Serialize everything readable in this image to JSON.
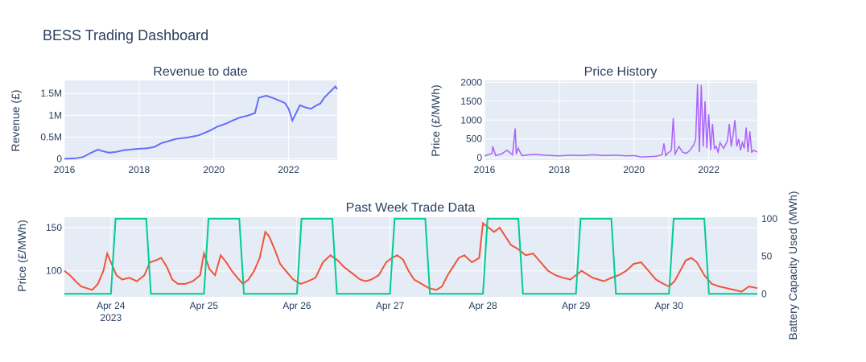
{
  "dashboard": {
    "title": "BESS Trading Dashboard"
  },
  "colors": {
    "plot_bg": "#e5ecf6",
    "grid": "#ffffff",
    "text": "#2a3f5f",
    "revenue_line": "#636efa",
    "price_history_line": "#ab63fa",
    "trade_price_line": "#ef553b",
    "battery_line": "#00cc96"
  },
  "chart_data": [
    {
      "id": "revenue",
      "type": "line",
      "title": "Revenue to date",
      "xlabel": "",
      "ylabel": "Revenue (£)",
      "xlim": [
        2016.0,
        2023.3
      ],
      "ylim": [
        -30000,
        1800000
      ],
      "x_ticks": [
        2016,
        2018,
        2020,
        2022
      ],
      "x_tick_labels": [
        "2016",
        "2018",
        "2020",
        "2022"
      ],
      "y_ticks": [
        0,
        500000,
        1000000,
        1500000
      ],
      "y_tick_labels": [
        "0",
        "0.5M",
        "1M",
        "1.5M"
      ],
      "x": [
        2016.0,
        2016.3,
        2016.5,
        2016.7,
        2016.9,
        2017.0,
        2017.2,
        2017.4,
        2017.6,
        2017.8,
        2018.0,
        2018.2,
        2018.4,
        2018.6,
        2018.8,
        2019.0,
        2019.3,
        2019.6,
        2019.9,
        2020.1,
        2020.3,
        2020.5,
        2020.7,
        2020.9,
        2021.0,
        2021.1,
        2021.2,
        2021.4,
        2021.6,
        2021.8,
        2021.9,
        2022.0,
        2022.1,
        2022.2,
        2022.3,
        2022.45,
        2022.6,
        2022.75,
        2022.85,
        2022.95,
        2023.1,
        2023.25,
        2023.3
      ],
      "y": [
        0,
        10000,
        40000,
        130000,
        210000,
        180000,
        140000,
        160000,
        200000,
        215000,
        230000,
        240000,
        270000,
        360000,
        410000,
        460000,
        490000,
        540000,
        650000,
        740000,
        800000,
        880000,
        950000,
        990000,
        1020000,
        1050000,
        1400000,
        1450000,
        1390000,
        1320000,
        1280000,
        1150000,
        880000,
        1050000,
        1230000,
        1180000,
        1150000,
        1230000,
        1270000,
        1400000,
        1530000,
        1660000,
        1600000
      ]
    },
    {
      "id": "price_history",
      "type": "line",
      "title": "Price History",
      "xlabel": "",
      "ylabel": "Price (£/MWh)",
      "xlim": [
        2016.0,
        2023.3
      ],
      "ylim": [
        -60,
        2050
      ],
      "x_ticks": [
        2016,
        2018,
        2020,
        2022
      ],
      "x_tick_labels": [
        "2016",
        "2018",
        "2020",
        "2022"
      ],
      "y_ticks": [
        0,
        500,
        1000,
        1500,
        2000
      ],
      "y_tick_labels": [
        "0",
        "500",
        "1000",
        "1500",
        "2000"
      ],
      "x": [
        2016.0,
        2016.1,
        2016.2,
        2016.22,
        2016.3,
        2016.45,
        2016.6,
        2016.75,
        2016.82,
        2016.85,
        2016.9,
        2017.0,
        2017.2,
        2017.4,
        2017.6,
        2017.8,
        2018.0,
        2018.3,
        2018.6,
        2018.9,
        2019.2,
        2019.5,
        2019.8,
        2020.0,
        2020.2,
        2020.4,
        2020.6,
        2020.75,
        2020.8,
        2020.85,
        2020.9,
        2021.0,
        2021.05,
        2021.1,
        2021.2,
        2021.3,
        2021.4,
        2021.5,
        2021.6,
        2021.65,
        2021.7,
        2021.75,
        2021.8,
        2021.85,
        2021.9,
        2021.95,
        2022.0,
        2022.05,
        2022.1,
        2022.15,
        2022.2,
        2022.25,
        2022.3,
        2022.4,
        2022.5,
        2022.55,
        2022.6,
        2022.65,
        2022.7,
        2022.75,
        2022.8,
        2022.85,
        2022.9,
        2022.95,
        2023.0,
        2023.05,
        2023.1,
        2023.15,
        2023.2,
        2023.3
      ],
      "y": [
        50,
        80,
        120,
        300,
        60,
        100,
        200,
        80,
        780,
        100,
        260,
        60,
        80,
        90,
        70,
        60,
        50,
        70,
        60,
        80,
        60,
        70,
        50,
        60,
        20,
        30,
        40,
        80,
        380,
        60,
        120,
        200,
        1050,
        100,
        300,
        150,
        120,
        200,
        350,
        500,
        1950,
        150,
        1930,
        300,
        1500,
        250,
        1150,
        200,
        900,
        250,
        300,
        150,
        400,
        250,
        450,
        900,
        300,
        600,
        1000,
        300,
        500,
        200,
        400,
        250,
        800,
        150,
        700,
        150,
        200,
        150
      ]
    },
    {
      "id": "trade_data",
      "type": "line",
      "title": "Past Week Trade Data",
      "xlabel": "",
      "ylabel": "Price (£/MWh)",
      "y2label": "Battery Capacity Used (MWh)",
      "xlim": [
        0.0,
        7.45
      ],
      "ylim": [
        70,
        162
      ],
      "y2lim": [
        -4,
        102
      ],
      "x_ticks": [
        0.5,
        1.5,
        2.5,
        3.5,
        4.5,
        5.5,
        6.5
      ],
      "x_tick_labels": [
        "Apr 24",
        "Apr 25",
        "Apr 26",
        "Apr 27",
        "Apr 28",
        "Apr 29",
        "Apr 30"
      ],
      "x_tick_sublabel": "2023",
      "y_ticks": [
        100,
        150
      ],
      "y_tick_labels": [
        "100",
        "150"
      ],
      "y2_ticks": [
        0,
        50,
        100
      ],
      "y2_tick_labels": [
        "0",
        "50",
        "100"
      ],
      "series": [
        {
          "axis": "y",
          "x": [
            0.0,
            0.06,
            0.12,
            0.18,
            0.24,
            0.3,
            0.36,
            0.42,
            0.46,
            0.5,
            0.56,
            0.62,
            0.7,
            0.78,
            0.86,
            0.92,
            0.98,
            1.04,
            1.1,
            1.16,
            1.22,
            1.3,
            1.38,
            1.46,
            1.5,
            1.56,
            1.62,
            1.68,
            1.74,
            1.8,
            1.86,
            1.92,
            1.98,
            2.04,
            2.1,
            2.16,
            2.2,
            2.26,
            2.32,
            2.38,
            2.46,
            2.54,
            2.62,
            2.7,
            2.78,
            2.86,
            2.94,
            3.0,
            3.06,
            3.12,
            3.18,
            3.24,
            3.3,
            3.38,
            3.46,
            3.52,
            3.58,
            3.64,
            3.7,
            3.76,
            3.84,
            3.92,
            4.0,
            4.06,
            4.12,
            4.18,
            4.24,
            4.3,
            4.38,
            4.46,
            4.5,
            4.56,
            4.62,
            4.68,
            4.74,
            4.8,
            4.88,
            4.96,
            5.04,
            5.12,
            5.2,
            5.28,
            5.36,
            5.44,
            5.5,
            5.56,
            5.62,
            5.68,
            5.74,
            5.8,
            5.88,
            5.96,
            6.04,
            6.12,
            6.2,
            6.28,
            6.36,
            6.44,
            6.5,
            6.56,
            6.62,
            6.68,
            6.74,
            6.8,
            6.88,
            6.96,
            7.04,
            7.12,
            7.2,
            7.28,
            7.36,
            7.45
          ],
          "y": [
            100,
            95,
            88,
            82,
            80,
            78,
            85,
            100,
            120,
            110,
            95,
            90,
            92,
            88,
            95,
            110,
            112,
            115,
            105,
            90,
            85,
            85,
            88,
            95,
            120,
            102,
            95,
            118,
            110,
            100,
            92,
            85,
            90,
            100,
            115,
            145,
            140,
            125,
            108,
            100,
            90,
            85,
            88,
            92,
            110,
            118,
            112,
            105,
            100,
            95,
            90,
            88,
            90,
            95,
            110,
            115,
            118,
            113,
            100,
            90,
            85,
            80,
            78,
            82,
            95,
            105,
            115,
            118,
            110,
            115,
            155,
            150,
            145,
            150,
            140,
            130,
            125,
            118,
            120,
            110,
            100,
            95,
            92,
            90,
            95,
            100,
            96,
            92,
            90,
            88,
            92,
            95,
            100,
            108,
            110,
            100,
            90,
            85,
            82,
            88,
            100,
            112,
            115,
            110,
            95,
            85,
            82,
            80,
            78,
            76,
            82,
            80
          ]
        },
        {
          "axis": "y2",
          "x": [
            0.0,
            0.5,
            0.55,
            0.88,
            0.93,
            1.5,
            1.55,
            1.88,
            1.93,
            2.5,
            2.55,
            2.88,
            2.93,
            3.5,
            3.55,
            3.88,
            3.93,
            4.5,
            4.55,
            4.88,
            4.93,
            5.5,
            5.55,
            5.88,
            5.93,
            6.5,
            6.55,
            6.88,
            6.93,
            7.45
          ],
          "y": [
            0,
            0,
            100,
            100,
            0,
            0,
            100,
            100,
            0,
            0,
            100,
            100,
            0,
            0,
            100,
            100,
            0,
            0,
            100,
            100,
            0,
            0,
            100,
            100,
            0,
            0,
            100,
            100,
            0,
            0
          ]
        }
      ]
    }
  ]
}
